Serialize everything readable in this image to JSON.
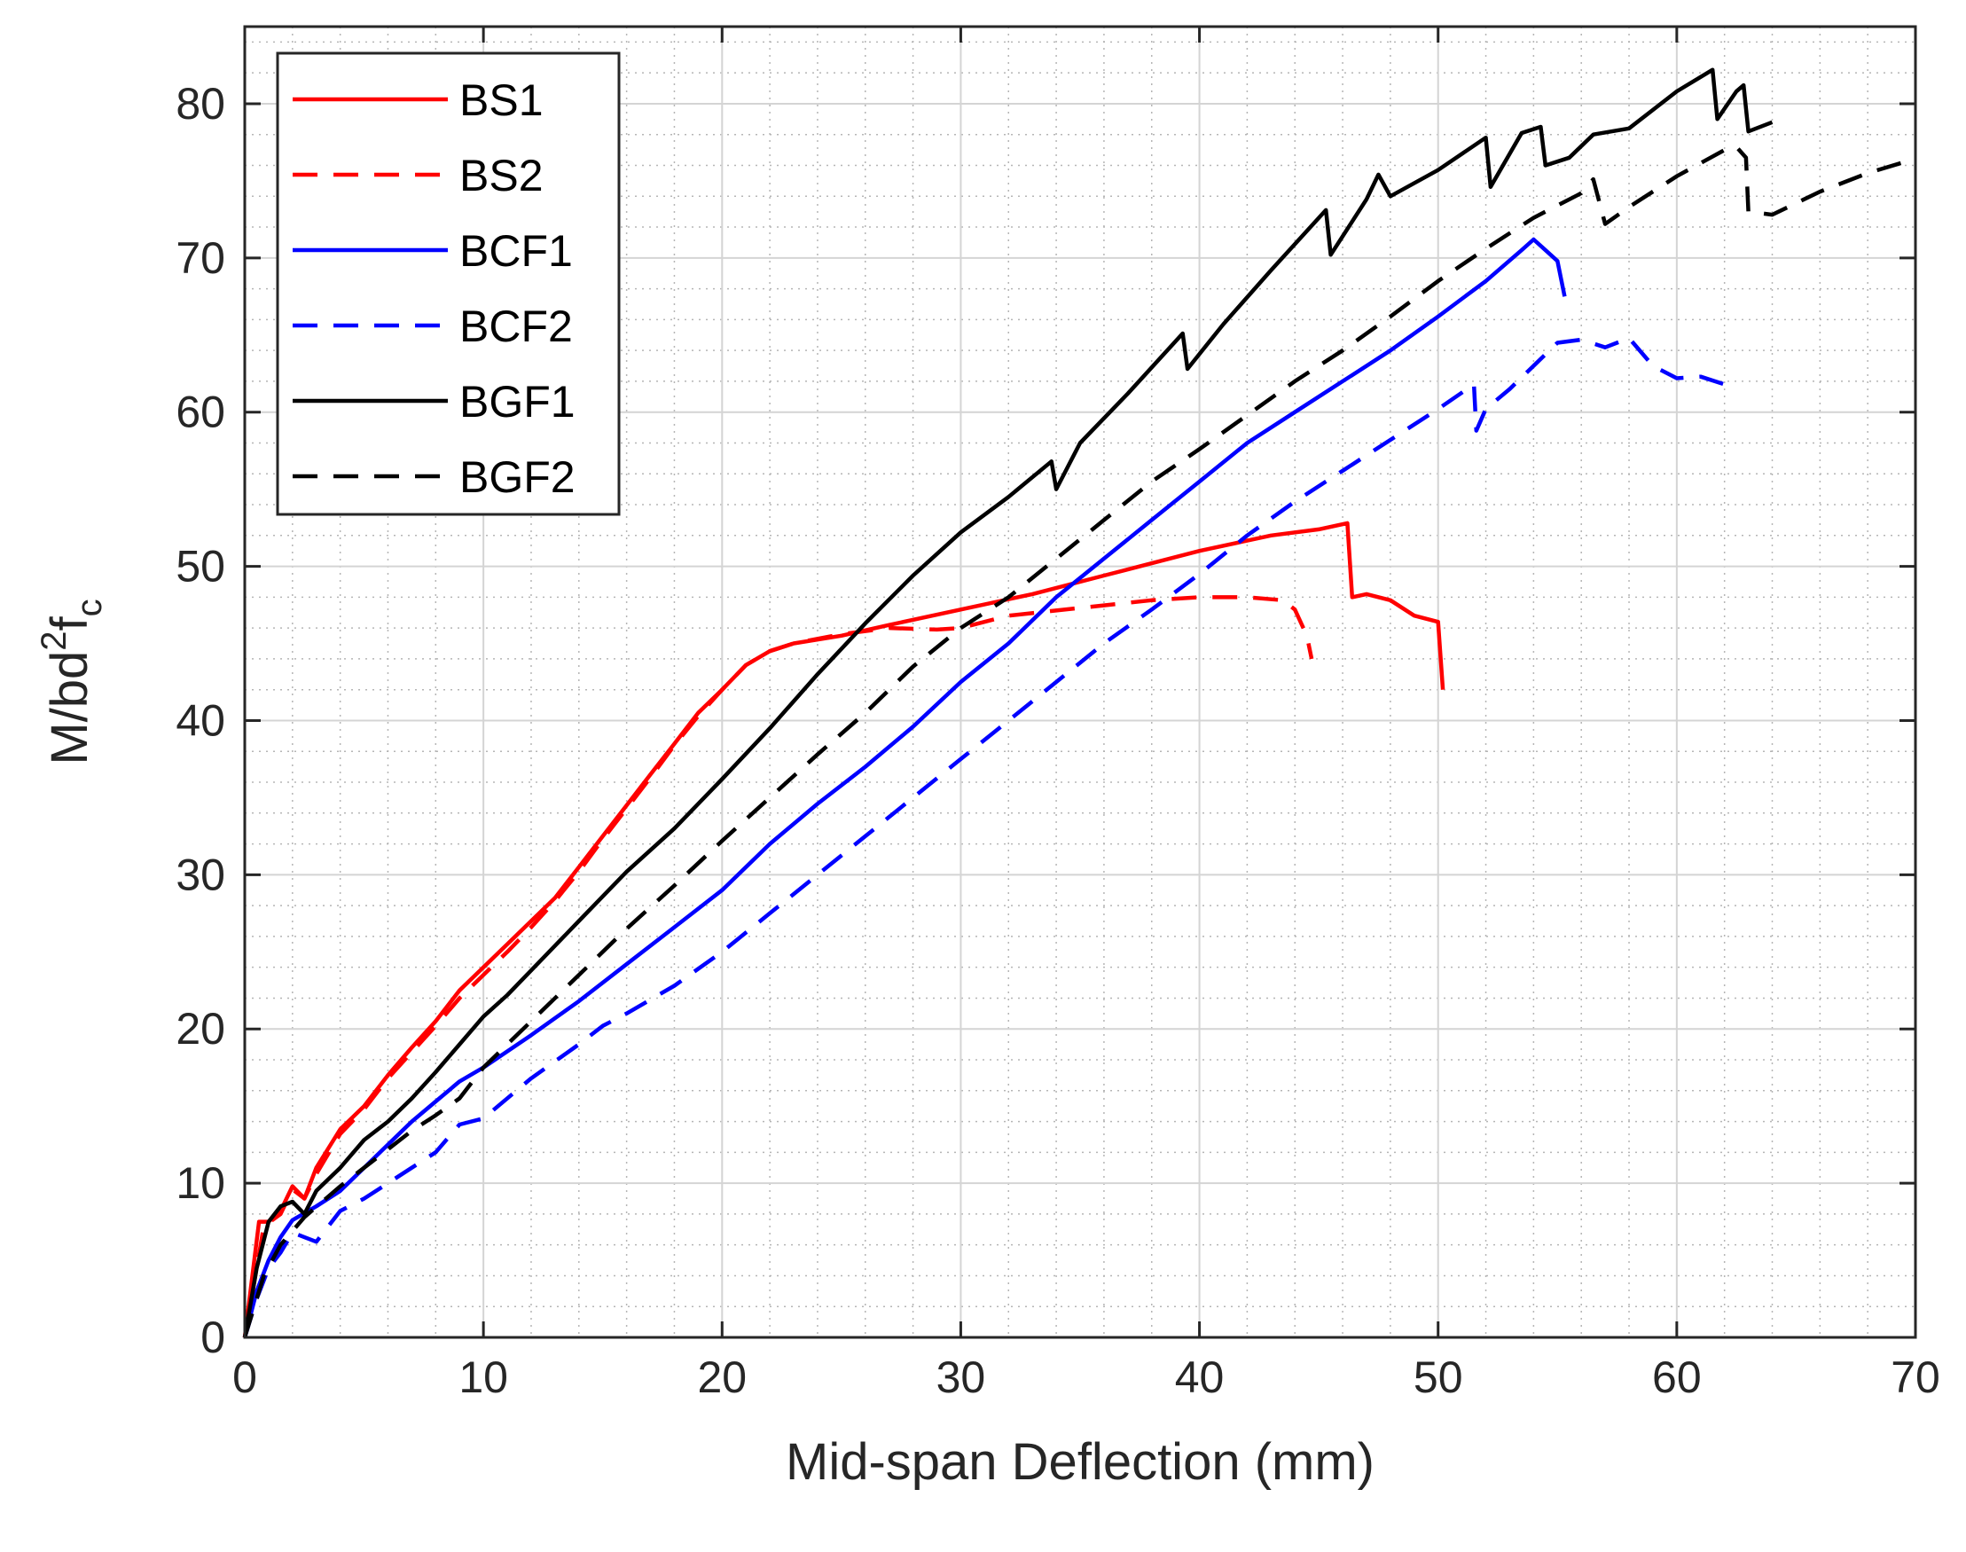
{
  "chart_data": {
    "type": "line",
    "xlabel": "Mid-span Deflection (mm)",
    "ylabel": "M/bd",
    "ylabel_sup": "2",
    "ylabel_f": "f",
    "ylabel_sub": "c",
    "xlim": [
      0,
      70
    ],
    "ylim": [
      0,
      85
    ],
    "xticks": [
      "0",
      "10",
      "20",
      "30",
      "40",
      "50",
      "60",
      "70"
    ],
    "yticks": [
      "0",
      "10",
      "20",
      "30",
      "40",
      "50",
      "60",
      "70",
      "80"
    ],
    "grid": true,
    "minor_grid": true,
    "legend_position": "top-left",
    "series": [
      {
        "name": "BS1",
        "color": "#ff0000",
        "dash": "solid",
        "points": [
          [
            0,
            0
          ],
          [
            0.6,
            7.5
          ],
          [
            1.0,
            7.5
          ],
          [
            1.5,
            8.2
          ],
          [
            2.0,
            9.8
          ],
          [
            2.5,
            9.0
          ],
          [
            3.0,
            11
          ],
          [
            4.0,
            13.5
          ],
          [
            5.0,
            15
          ],
          [
            6.0,
            17
          ],
          [
            7.0,
            18.8
          ],
          [
            8.0,
            20.5
          ],
          [
            9.0,
            22.5
          ],
          [
            10.0,
            24
          ],
          [
            11.0,
            25.5
          ],
          [
            12.0,
            27
          ],
          [
            13.0,
            28.5
          ],
          [
            14.0,
            30.5
          ],
          [
            15.0,
            32.5
          ],
          [
            16.0,
            34.5
          ],
          [
            17.0,
            36.5
          ],
          [
            18.0,
            38.5
          ],
          [
            19.0,
            40.5
          ],
          [
            20.0,
            42
          ],
          [
            21.0,
            43.6
          ],
          [
            22.0,
            44.5
          ],
          [
            23.0,
            45
          ],
          [
            25.0,
            45.5
          ],
          [
            27.0,
            46.2
          ],
          [
            30.0,
            47.2
          ],
          [
            33.0,
            48.2
          ],
          [
            36.0,
            49.4
          ],
          [
            40.0,
            51
          ],
          [
            43.0,
            52
          ],
          [
            45.0,
            52.4
          ],
          [
            46.2,
            52.8
          ],
          [
            46.4,
            48
          ],
          [
            47.0,
            48.2
          ],
          [
            48.0,
            47.8
          ],
          [
            49.0,
            46.8
          ],
          [
            50.0,
            46.4
          ],
          [
            50.2,
            42
          ]
        ]
      },
      {
        "name": "BS2",
        "color": "#ff0000",
        "dash": "dashed",
        "points": [
          [
            0,
            0
          ],
          [
            0.8,
            7.2
          ],
          [
            1.5,
            8
          ],
          [
            2.0,
            9.6
          ],
          [
            2.5,
            9
          ],
          [
            3.0,
            10.6
          ],
          [
            4.0,
            13.2
          ],
          [
            5.0,
            14.8
          ],
          [
            6.0,
            16.8
          ],
          [
            7.0,
            18.5
          ],
          [
            8.0,
            20.2
          ],
          [
            9.0,
            22
          ],
          [
            10.0,
            23.5
          ],
          [
            11.0,
            25
          ],
          [
            12.0,
            26.6
          ],
          [
            13.0,
            28.3
          ],
          [
            14.0,
            30.2
          ],
          [
            15.0,
            32.3
          ],
          [
            16.0,
            34.3
          ],
          [
            17.0,
            36.3
          ],
          [
            18.0,
            38.4
          ],
          [
            19.0,
            40.3
          ],
          [
            20.0,
            42
          ],
          [
            21.0,
            43.6
          ],
          [
            22.0,
            44.5
          ],
          [
            23.0,
            45
          ],
          [
            25.0,
            45.6
          ],
          [
            27.0,
            46
          ],
          [
            29.0,
            45.9
          ],
          [
            30.0,
            46
          ],
          [
            32.0,
            46.8
          ],
          [
            35.0,
            47.3
          ],
          [
            38.0,
            47.8
          ],
          [
            40.0,
            48
          ],
          [
            42.0,
            48
          ],
          [
            43.5,
            47.8
          ],
          [
            44.0,
            47.2
          ],
          [
            44.5,
            45.5
          ],
          [
            44.7,
            44
          ]
        ]
      },
      {
        "name": "BCF1",
        "color": "#0000ff",
        "dash": "solid",
        "points": [
          [
            0,
            0
          ],
          [
            0.5,
            3
          ],
          [
            1.0,
            5
          ],
          [
            1.5,
            6.5
          ],
          [
            2.0,
            7.6
          ],
          [
            3.0,
            8.5
          ],
          [
            4.0,
            9.5
          ],
          [
            5.0,
            11
          ],
          [
            6.0,
            12.5
          ],
          [
            7.0,
            14
          ],
          [
            8.0,
            15.3
          ],
          [
            9.0,
            16.6
          ],
          [
            10.0,
            17.5
          ],
          [
            12.0,
            19.6
          ],
          [
            14.0,
            21.8
          ],
          [
            16.0,
            24.2
          ],
          [
            18.0,
            26.6
          ],
          [
            20.0,
            29
          ],
          [
            22.0,
            32
          ],
          [
            24.0,
            34.6
          ],
          [
            26.0,
            37
          ],
          [
            28.0,
            39.6
          ],
          [
            30.0,
            42.5
          ],
          [
            32.0,
            45
          ],
          [
            34.0,
            48
          ],
          [
            36.0,
            50.5
          ],
          [
            38.0,
            53
          ],
          [
            40.0,
            55.5
          ],
          [
            42.0,
            58
          ],
          [
            44.0,
            60
          ],
          [
            46.0,
            62
          ],
          [
            48.0,
            64
          ],
          [
            50.0,
            66.2
          ],
          [
            52.0,
            68.5
          ],
          [
            53.5,
            70.5
          ],
          [
            54.0,
            71.2
          ],
          [
            54.5,
            70.5
          ],
          [
            55.0,
            69.8
          ],
          [
            55.3,
            67.5
          ]
        ]
      },
      {
        "name": "BCF2",
        "color": "#0000ff",
        "dash": "dashed",
        "points": [
          [
            0,
            0
          ],
          [
            0.5,
            2.5
          ],
          [
            1.0,
            4.5
          ],
          [
            1.5,
            5.5
          ],
          [
            2.0,
            6.8
          ],
          [
            3.0,
            6.2
          ],
          [
            4.0,
            8.2
          ],
          [
            5.0,
            9
          ],
          [
            6.0,
            10
          ],
          [
            7.0,
            11
          ],
          [
            8.0,
            12
          ],
          [
            9.0,
            13.8
          ],
          [
            10.0,
            14.2
          ],
          [
            12.0,
            16.8
          ],
          [
            14.0,
            19
          ],
          [
            15.0,
            20.2
          ],
          [
            16.0,
            21
          ],
          [
            18.0,
            22.8
          ],
          [
            20.0,
            25
          ],
          [
            22.0,
            27.5
          ],
          [
            24.0,
            30
          ],
          [
            26.0,
            32.5
          ],
          [
            28.0,
            35
          ],
          [
            30.0,
            37.5
          ],
          [
            32.0,
            40
          ],
          [
            34.0,
            42.5
          ],
          [
            36.0,
            45
          ],
          [
            38.0,
            47.2
          ],
          [
            40.0,
            49.5
          ],
          [
            42.0,
            52
          ],
          [
            44.0,
            54.2
          ],
          [
            46.0,
            56.2
          ],
          [
            48.0,
            58.2
          ],
          [
            50.0,
            60.2
          ],
          [
            51.5,
            61.8
          ],
          [
            51.6,
            58.8
          ],
          [
            52.0,
            60.2
          ],
          [
            53.0,
            61.5
          ],
          [
            54.0,
            63
          ],
          [
            55.0,
            64.5
          ],
          [
            56.0,
            64.7
          ],
          [
            57.0,
            64.2
          ],
          [
            58.0,
            64.8
          ],
          [
            59.0,
            63
          ],
          [
            60.0,
            62.2
          ],
          [
            61.0,
            62.3
          ],
          [
            62.0,
            61.8
          ]
        ]
      },
      {
        "name": "BGF1",
        "color": "#000000",
        "dash": "solid",
        "points": [
          [
            0,
            0
          ],
          [
            0.5,
            4.5
          ],
          [
            1.0,
            7.5
          ],
          [
            1.5,
            8.5
          ],
          [
            2.0,
            8.8
          ],
          [
            2.5,
            8.0
          ],
          [
            3.0,
            9.5
          ],
          [
            4.0,
            11
          ],
          [
            5.0,
            12.8
          ],
          [
            6.0,
            14
          ],
          [
            7.0,
            15.5
          ],
          [
            8.0,
            17.2
          ],
          [
            9.0,
            19
          ],
          [
            10.0,
            20.8
          ],
          [
            11.0,
            22.2
          ],
          [
            12.0,
            23.8
          ],
          [
            14.0,
            27
          ],
          [
            16.0,
            30.2
          ],
          [
            18.0,
            33
          ],
          [
            20.0,
            36.2
          ],
          [
            22.0,
            39.5
          ],
          [
            24.0,
            43
          ],
          [
            26.0,
            46.3
          ],
          [
            28.0,
            49.4
          ],
          [
            30.0,
            52.2
          ],
          [
            32.0,
            54.5
          ],
          [
            33.8,
            56.8
          ],
          [
            34.0,
            55
          ],
          [
            35.0,
            58
          ],
          [
            37.0,
            61.2
          ],
          [
            39.3,
            65.1
          ],
          [
            39.5,
            62.8
          ],
          [
            41.0,
            65.7
          ],
          [
            43.0,
            69.2
          ],
          [
            45.3,
            73.1
          ],
          [
            45.5,
            70.2
          ],
          [
            47.0,
            73.8
          ],
          [
            47.5,
            75.4
          ],
          [
            48.0,
            74
          ],
          [
            50.0,
            75.7
          ],
          [
            52.0,
            77.8
          ],
          [
            52.2,
            74.6
          ],
          [
            53.5,
            78.1
          ],
          [
            54.3,
            78.5
          ],
          [
            54.5,
            76
          ],
          [
            55.5,
            76.5
          ],
          [
            56.5,
            78
          ],
          [
            58.0,
            78.4
          ],
          [
            60.0,
            80.8
          ],
          [
            61.5,
            82.2
          ],
          [
            61.7,
            79
          ],
          [
            62.5,
            80.8
          ],
          [
            62.8,
            81.2
          ],
          [
            63.0,
            78.2
          ],
          [
            64.0,
            78.8
          ]
        ]
      },
      {
        "name": "BGF2",
        "color": "#000000",
        "dash": "dashed",
        "points": [
          [
            0,
            0
          ],
          [
            0.8,
            4
          ],
          [
            1.5,
            6
          ],
          [
            2.5,
            7.8
          ],
          [
            4.0,
            9.8
          ],
          [
            5.0,
            11
          ],
          [
            6.0,
            12.2
          ],
          [
            7.0,
            13.4
          ],
          [
            8.0,
            14.4
          ],
          [
            9.0,
            15.5
          ],
          [
            10.0,
            17.5
          ],
          [
            12.0,
            20.5
          ],
          [
            14.0,
            23.5
          ],
          [
            16.0,
            26.5
          ],
          [
            18.0,
            29.3
          ],
          [
            20.0,
            32.2
          ],
          [
            22.0,
            35
          ],
          [
            24.0,
            37.8
          ],
          [
            26.0,
            40.5
          ],
          [
            28.0,
            43.5
          ],
          [
            30.0,
            46
          ],
          [
            32.0,
            48
          ],
          [
            34.0,
            50.5
          ],
          [
            36.0,
            53
          ],
          [
            38.0,
            55.5
          ],
          [
            40.0,
            57.6
          ],
          [
            42.0,
            59.8
          ],
          [
            44.0,
            62
          ],
          [
            46.0,
            64
          ],
          [
            48.0,
            66.2
          ],
          [
            50.0,
            68.5
          ],
          [
            52.0,
            70.6
          ],
          [
            54.0,
            72.6
          ],
          [
            56.0,
            74.2
          ],
          [
            56.5,
            75.1
          ],
          [
            57.0,
            72.2
          ],
          [
            58.0,
            73.3
          ],
          [
            60.0,
            75.3
          ],
          [
            62.0,
            77
          ],
          [
            62.5,
            77.2
          ],
          [
            62.9,
            76.5
          ],
          [
            63.0,
            73
          ],
          [
            64.0,
            72.8
          ],
          [
            66.0,
            74.3
          ],
          [
            68.0,
            75.5
          ],
          [
            69.5,
            76.2
          ],
          [
            70.0,
            76
          ]
        ]
      }
    ]
  }
}
